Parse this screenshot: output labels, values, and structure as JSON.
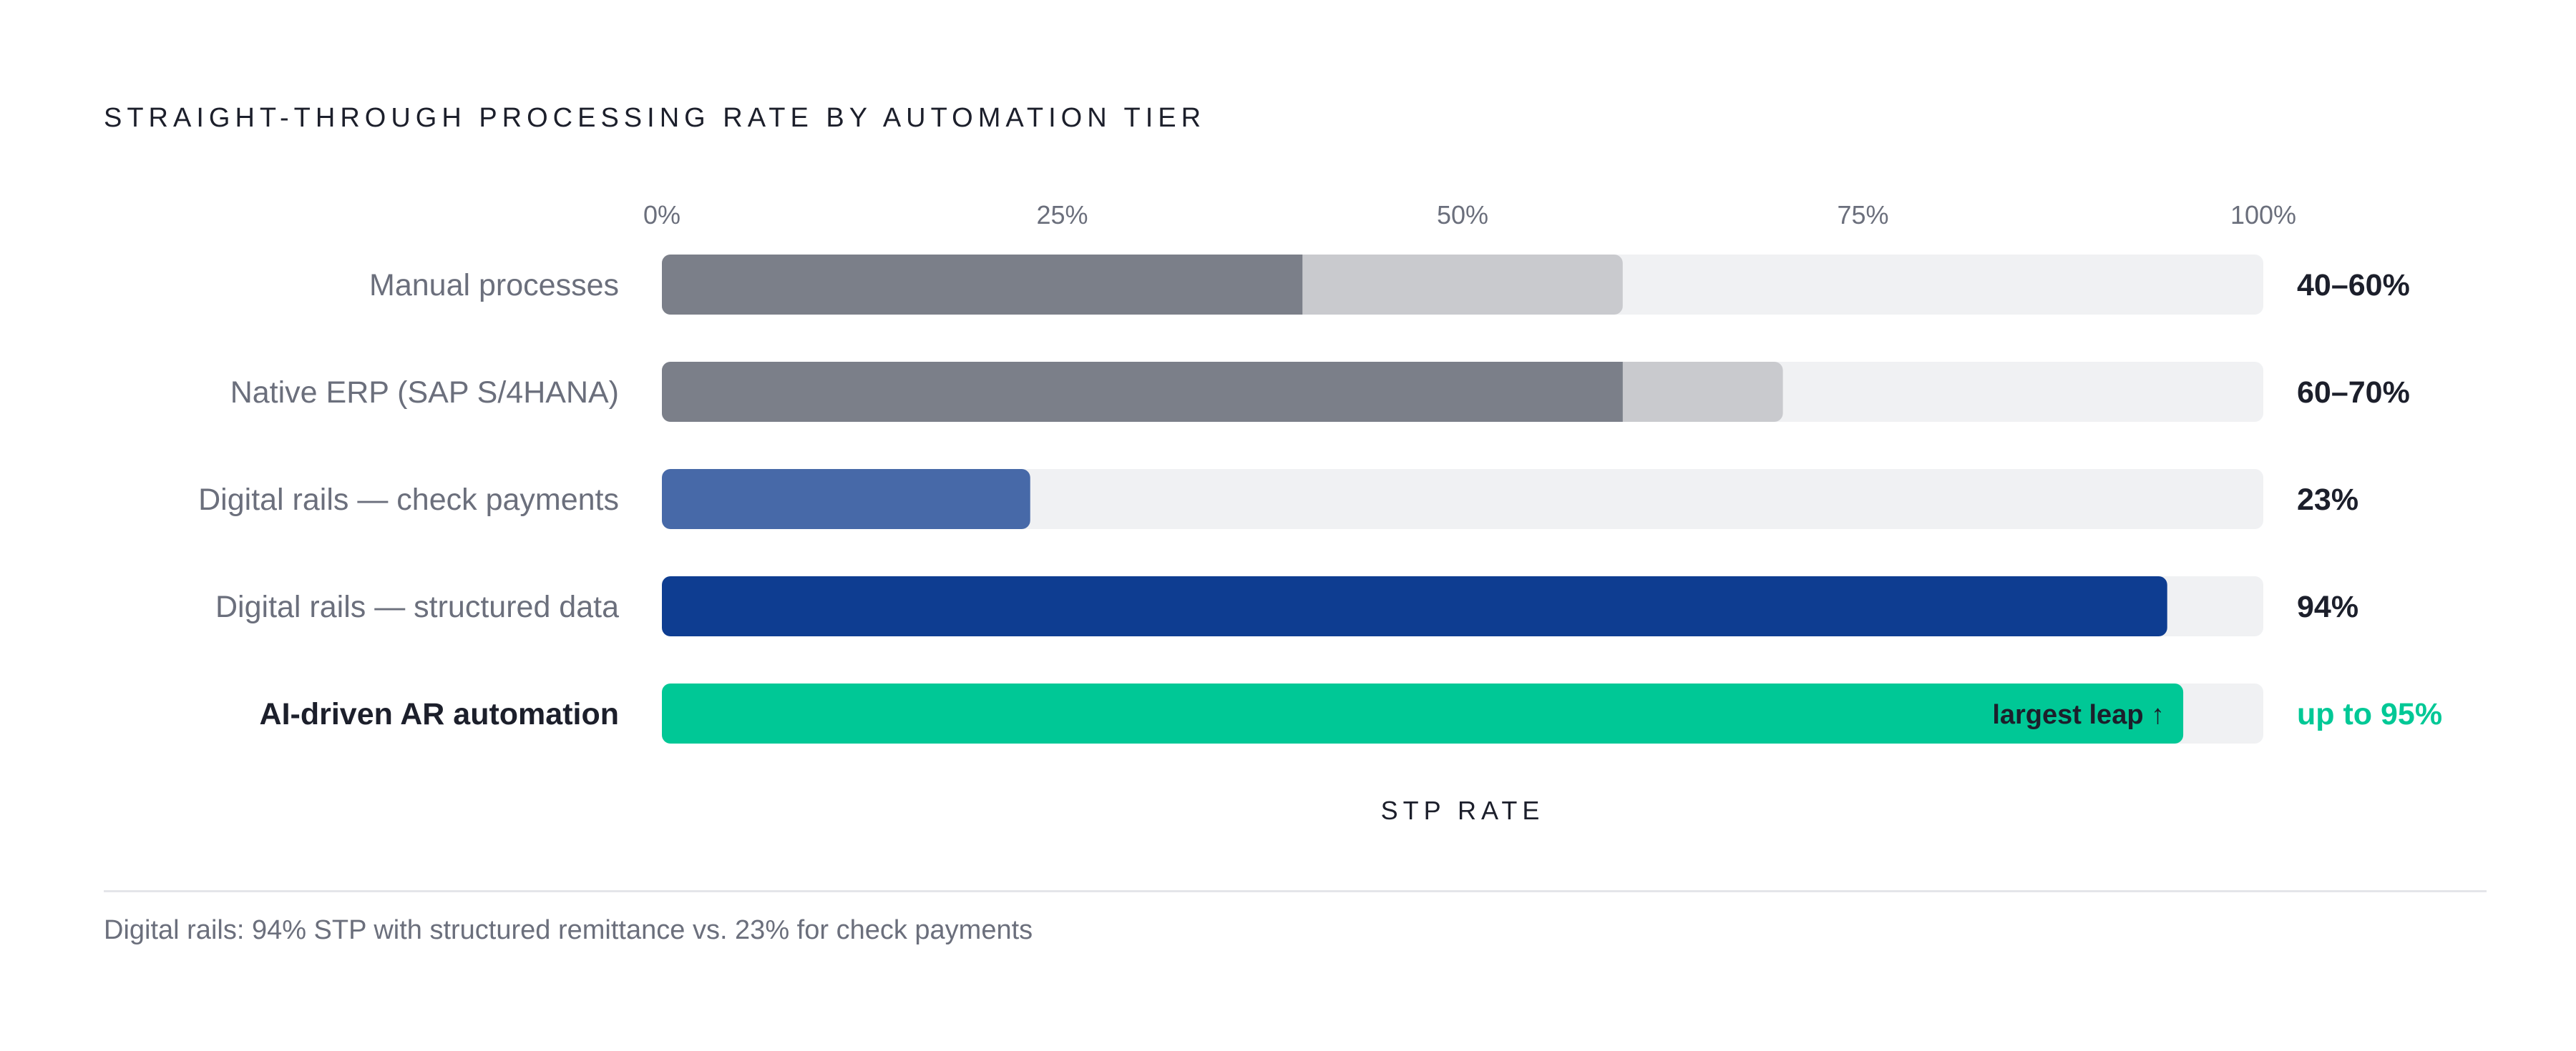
{
  "chart_data": {
    "type": "bar",
    "orientation": "horizontal",
    "title": "STRAIGHT-THROUGH PROCESSING RATE BY AUTOMATION TIER",
    "xlabel": "STP RATE",
    "xlim": [
      0,
      100
    ],
    "x_ticks": [
      "0%",
      "25%",
      "50%",
      "75%",
      "100%"
    ],
    "x_tick_values": [
      0,
      25,
      50,
      75,
      100
    ],
    "categories": [
      "Manual processes",
      "Native ERP (SAP S/4HANA)",
      "Digital rails — check payments",
      "Digital rails — structured data",
      "AI-driven AR automation"
    ],
    "bars": [
      {
        "low": 40,
        "high": 60,
        "value_label": "40–60%",
        "color": "#7b7f89",
        "range_color": "#c9cace",
        "highlight": false
      },
      {
        "low": 60,
        "high": 70,
        "value_label": "60–70%",
        "color": "#7b7f89",
        "range_color": "#c9cace",
        "highlight": false
      },
      {
        "low": 23,
        "high": 23,
        "value_label": "23%",
        "color": "#4769a8",
        "range_color": "#4769a8",
        "highlight": false
      },
      {
        "low": 94,
        "high": 94,
        "value_label": "94%",
        "color": "#0e3d91",
        "range_color": "#0e3d91",
        "highlight": false
      },
      {
        "low": 95,
        "high": 95,
        "value_label": "up to 95%",
        "color": "#00c896",
        "range_color": "#00c896",
        "highlight": true,
        "callout": "largest leap ↑"
      }
    ],
    "track_color": "#f0f1f3",
    "grid": false,
    "footnote": "Digital rails: 94% STP with structured remittance vs. 23% for check payments"
  }
}
